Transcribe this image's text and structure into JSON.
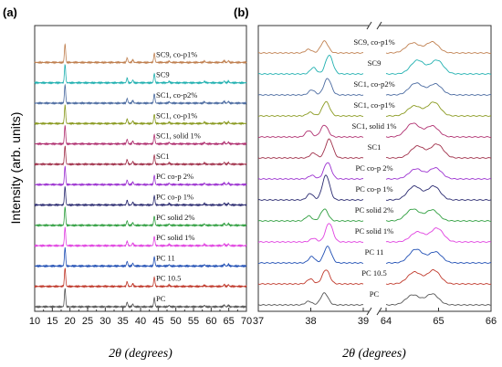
{
  "chart_data": [
    {
      "type": "line",
      "panel_label": "(a)",
      "ylabel": "Intensity (arb. units)",
      "xlabel": "2θ (degrees)",
      "xlim": [
        10,
        70
      ],
      "x_ticks": [
        10,
        15,
        20,
        25,
        30,
        35,
        40,
        45,
        50,
        55,
        60,
        65,
        70
      ],
      "y_ticks": "none",
      "grid": false,
      "legend": "none",
      "peaks_deg": [
        18.6,
        36.2,
        37.8,
        43.9,
        48.1,
        58.1,
        63.7,
        64.9
      ],
      "series": [
        {
          "name": "PC",
          "color": "#555555"
        },
        {
          "name": "PC 10.5",
          "color": "#c0392b"
        },
        {
          "name": "PC 11",
          "color": "#1f4eb4"
        },
        {
          "name": "PC solid 1%",
          "color": "#e040e0"
        },
        {
          "name": "PC solid 2%",
          "color": "#2e9e3e"
        },
        {
          "name": "PC co-p 1%",
          "color": "#2a2a70"
        },
        {
          "name": "PC co-p 2%",
          "color": "#9b30d0"
        },
        {
          "name": "SC1",
          "color": "#a0304a"
        },
        {
          "name": "SC1, solid 1%",
          "color": "#b03070"
        },
        {
          "name": "SC1, co-p1%",
          "color": "#8a9a20"
        },
        {
          "name": "SC1, co-p2%",
          "color": "#4a6aa0"
        },
        {
          "name": "SC9",
          "color": "#20b0b0"
        },
        {
          "name": "SC9, co-p1%",
          "color": "#c08050"
        }
      ]
    },
    {
      "type": "line",
      "panel_label": "(b)",
      "xlabel": "2θ (degrees)",
      "broken_x_axis": true,
      "segments": [
        {
          "xlim": [
            37,
            39
          ],
          "x_ticks": [
            37,
            38,
            39
          ]
        },
        {
          "xlim": [
            64,
            66
          ],
          "x_ticks": [
            64,
            65,
            66
          ]
        }
      ],
      "y_ticks": "none",
      "grid": false,
      "legend": "none",
      "series": [
        {
          "name": "PC",
          "color": "#555555"
        },
        {
          "name": "PC 10.5",
          "color": "#c0392b"
        },
        {
          "name": "PC 11",
          "color": "#1f4eb4"
        },
        {
          "name": "PC solid 1%",
          "color": "#e040e0"
        },
        {
          "name": "PC solid 2%",
          "color": "#2e9e3e"
        },
        {
          "name": "PC co-p 1%",
          "color": "#2a2a70"
        },
        {
          "name": "PC co-p 2%",
          "color": "#9b30d0"
        },
        {
          "name": "SC1",
          "color": "#a0304a"
        },
        {
          "name": "SC1, solid 1%",
          "color": "#b03070"
        },
        {
          "name": "SC1, co-p1%",
          "color": "#8a9a20"
        },
        {
          "name": "SC1, co-p2%",
          "color": "#4a6aa0"
        },
        {
          "name": "SC9",
          "color": "#20b0b0"
        },
        {
          "name": "SC9, co-p1%",
          "color": "#c08050"
        }
      ]
    }
  ]
}
